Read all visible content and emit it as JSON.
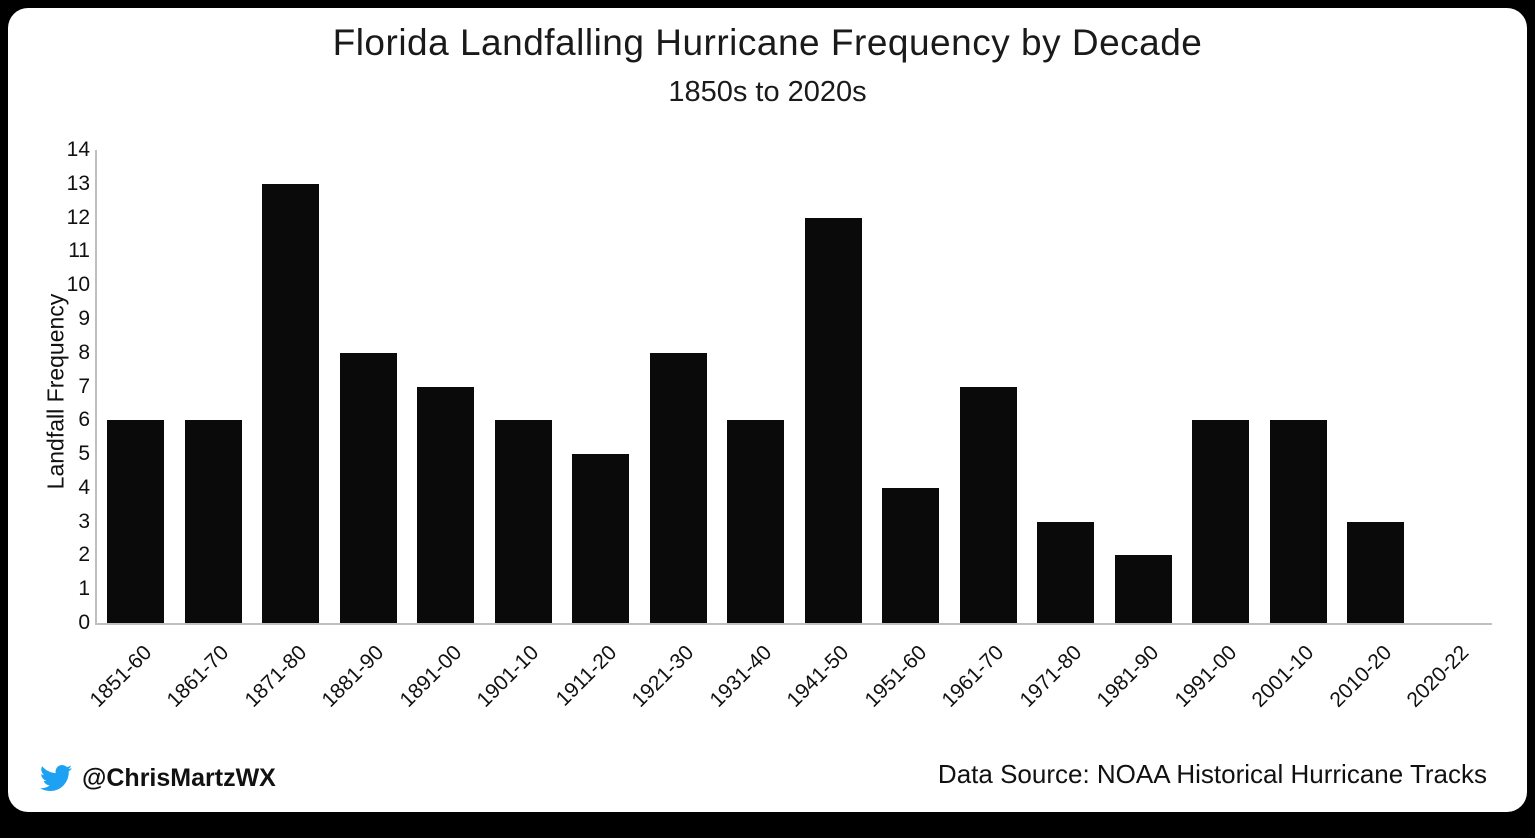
{
  "frame": {
    "background": "#000000",
    "card_background": "#ffffff"
  },
  "chart_data": {
    "type": "bar",
    "title": "Florida Landfalling Hurricane Frequency by Decade",
    "subtitle": "1850s to 2020s",
    "ylabel": "Landfall Frequency",
    "xlabel": "",
    "categories": [
      "1851-60",
      "1861-70",
      "1871-80",
      "1881-90",
      "1891-00",
      "1901-10",
      "1911-20",
      "1921-30",
      "1931-40",
      "1941-50",
      "1951-60",
      "1961-70",
      "1971-80",
      "1981-90",
      "1991-00",
      "2001-10",
      "2010-20",
      "2020-22"
    ],
    "values": [
      6,
      6,
      13,
      8,
      7,
      6,
      5,
      8,
      6,
      12,
      4,
      7,
      3,
      2,
      6,
      6,
      3,
      0
    ],
    "ylim": [
      0,
      14
    ],
    "ytick_step": 1,
    "bar_color": "#0a0a0a",
    "grid": false,
    "legend_position": "none"
  },
  "footer": {
    "handle": "@ChrisMartzWX",
    "source": "Data Source: NOAA Historical Hurricane Tracks",
    "twitter_color": "#1DA1F2"
  }
}
